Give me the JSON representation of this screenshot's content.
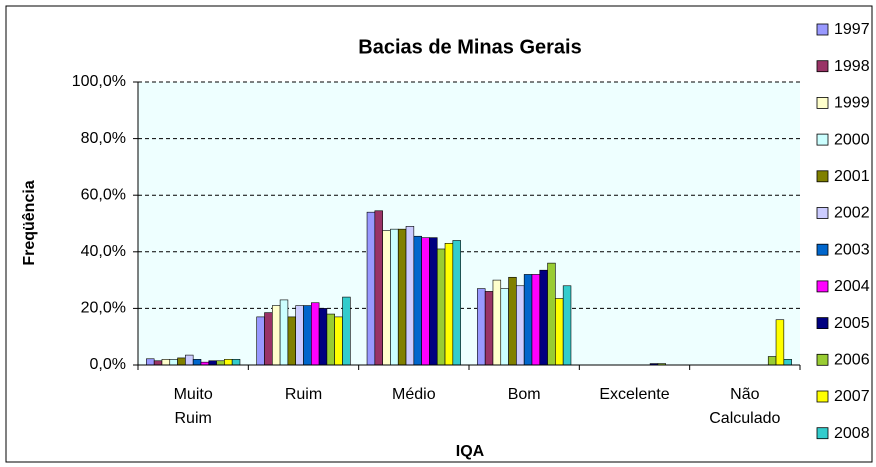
{
  "chart_data": {
    "type": "bar",
    "title": "Bacias de Minas Gerais",
    "x_label": "IQA",
    "y_label": "Freqüência",
    "categories": [
      "Muito Ruim",
      "Ruim",
      "Médio",
      "Bom",
      "Excelente",
      "Não Calculado"
    ],
    "series": [
      {
        "name": "1997",
        "color": "#9999FF",
        "values": [
          2.2,
          17,
          54,
          27,
          0,
          0
        ]
      },
      {
        "name": "1998",
        "color": "#993366",
        "values": [
          1.5,
          18.5,
          54.5,
          26,
          0,
          0
        ]
      },
      {
        "name": "1999",
        "color": "#FFFFCC",
        "values": [
          2,
          21,
          47.5,
          30,
          0,
          0
        ]
      },
      {
        "name": "2000",
        "color": "#CCFFFF",
        "values": [
          2,
          23,
          48,
          27,
          0,
          0
        ]
      },
      {
        "name": "2001",
        "color": "#808000",
        "values": [
          2.5,
          17,
          48,
          31,
          0,
          0
        ]
      },
      {
        "name": "2002",
        "color": "#CCCCFF",
        "values": [
          3.5,
          21,
          49,
          28,
          0,
          0
        ]
      },
      {
        "name": "2003",
        "color": "#0066CC",
        "values": [
          2,
          21,
          45.5,
          32,
          0,
          0
        ]
      },
      {
        "name": "2004",
        "color": "#FF00FF",
        "values": [
          1,
          22,
          45,
          32,
          0,
          0
        ]
      },
      {
        "name": "2005",
        "color": "#000080",
        "values": [
          1.5,
          20,
          45,
          33.5,
          0.5,
          0
        ]
      },
      {
        "name": "2006",
        "color": "#99CC33",
        "values": [
          1.5,
          18,
          41,
          36,
          0.5,
          3
        ]
      },
      {
        "name": "2007",
        "color": "#FFFF00",
        "values": [
          2,
          17,
          43,
          23.5,
          0,
          16
        ]
      },
      {
        "name": "2008",
        "color": "#33CCCC",
        "values": [
          2,
          24,
          44,
          28,
          0,
          2
        ]
      }
    ],
    "ylim": [
      0,
      100
    ],
    "yticks": [
      {
        "value": 0,
        "label": "0,0%"
      },
      {
        "value": 20,
        "label": "20,0%"
      },
      {
        "value": 40,
        "label": "40,0%"
      },
      {
        "value": 60,
        "label": "60,0%"
      },
      {
        "value": 80,
        "label": "80,0%"
      },
      {
        "value": 100,
        "label": "100,0%"
      }
    ],
    "grid": true,
    "legend": "right"
  }
}
